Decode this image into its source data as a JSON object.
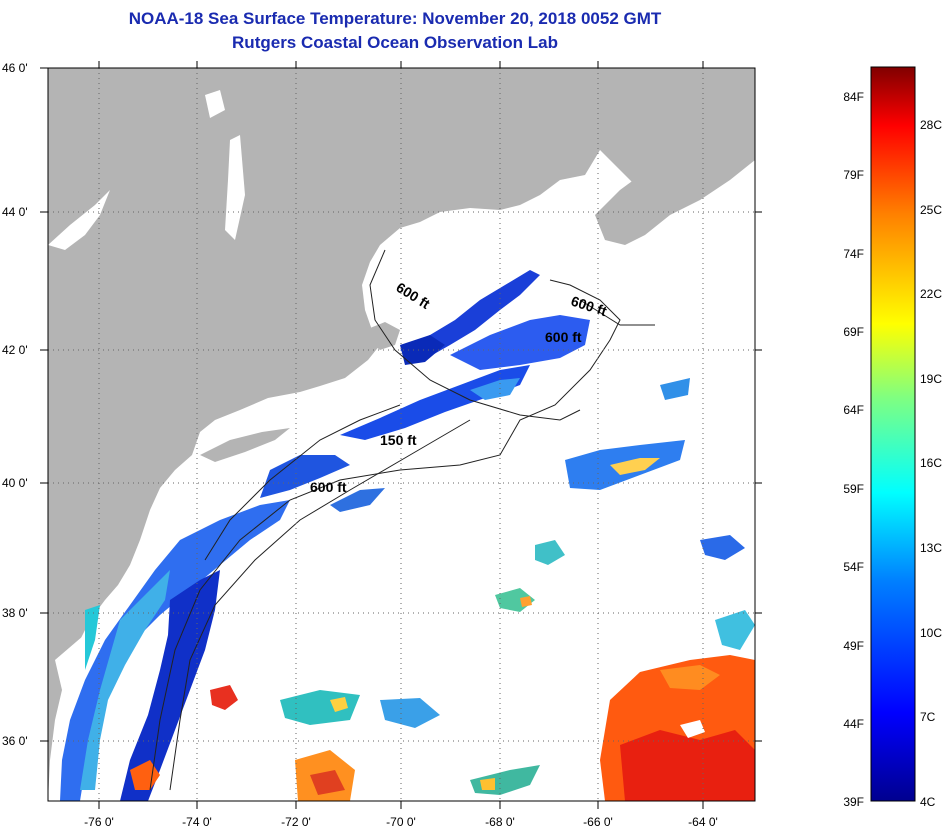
{
  "title": {
    "line1": "NOAA-18 Sea Surface Temperature:  November 20, 2018 0052 GMT",
    "line2": "Rutgers Coastal Ocean Observation Lab"
  },
  "map": {
    "lat_labels": [
      "46 0'",
      "44 0'",
      "42 0'",
      "40 0'",
      "38 0'",
      "36 0'"
    ],
    "lon_labels": [
      "-76 0'",
      "-74 0'",
      "-72 0'",
      "-70 0'",
      "-68 0'",
      "-66 0'",
      "-64 0'"
    ],
    "contour_labels": [
      "600 ft",
      "600 ft",
      "600 ft",
      "150 ft",
      "600 ft"
    ],
    "colors": {
      "land": "#b4b4b4",
      "no_data": "#ffffff",
      "grid": "#555555"
    }
  },
  "colorbar": {
    "fahrenheit": [
      "84F",
      "79F",
      "74F",
      "69F",
      "64F",
      "59F",
      "54F",
      "49F",
      "44F",
      "39F"
    ],
    "celsius": [
      "28C",
      "25C",
      "22C",
      "19C",
      "16C",
      "13C",
      "10C",
      "7C",
      "4C"
    ]
  }
}
